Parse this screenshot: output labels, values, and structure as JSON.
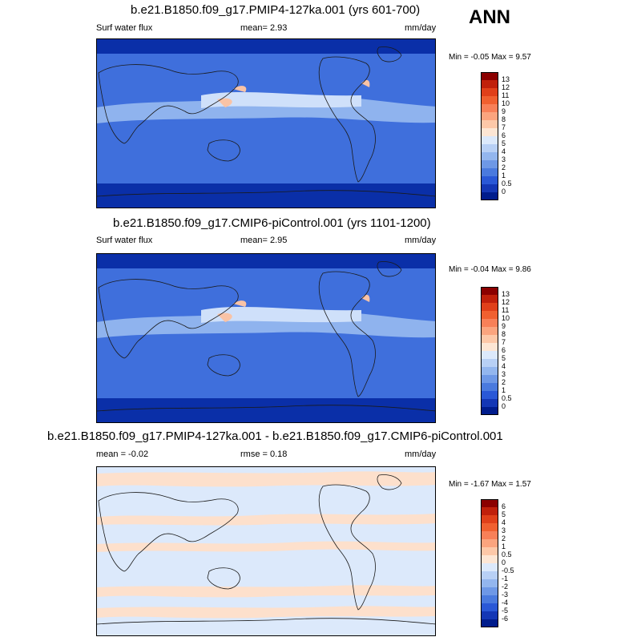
{
  "ann_label": "ANN",
  "units": "mm/day",
  "panels": [
    {
      "title": "b.e21.B1850.f09_g17.PMIP4-127ka.001 (yrs 601-700)",
      "left_label": "Surf water flux",
      "center_label": "mean=   2.93",
      "right_label": "mm/day",
      "minmax": "Min =  -0.05 Max =   9.57",
      "colorbar": {
        "labels": [
          "13",
          "12",
          "11",
          "10",
          "9",
          "8",
          "7",
          "6",
          "5",
          "4",
          "3",
          "2",
          "1",
          "0.5",
          "0"
        ],
        "colors": [
          "#8b0000",
          "#c0200b",
          "#e0401a",
          "#f06030",
          "#f88058",
          "#fba47e",
          "#fdc8a8",
          "#fde6d4",
          "#dce9fb",
          "#b8d0f5",
          "#93b6ee",
          "#6e98e6",
          "#4a7ade",
          "#2a58d6",
          "#1437b5",
          "#001c8c"
        ]
      }
    },
    {
      "title": "b.e21.B1850.f09_g17.CMIP6-piControl.001 (yrs 1101-1200)",
      "left_label": "Surf water flux",
      "center_label": "mean=   2.95",
      "right_label": "mm/day",
      "minmax": "Min =  -0.04 Max =   9.86",
      "colorbar": {
        "labels": [
          "13",
          "12",
          "11",
          "10",
          "9",
          "8",
          "7",
          "6",
          "5",
          "4",
          "3",
          "2",
          "1",
          "0.5",
          "0"
        ],
        "colors": [
          "#8b0000",
          "#c0200b",
          "#e0401a",
          "#f06030",
          "#f88058",
          "#fba47e",
          "#fdc8a8",
          "#fde6d4",
          "#dce9fb",
          "#b8d0f5",
          "#93b6ee",
          "#6e98e6",
          "#4a7ade",
          "#2a58d6",
          "#1437b5",
          "#001c8c"
        ]
      }
    },
    {
      "title": "b.e21.B1850.f09_g17.PMIP4-127ka.001 - b.e21.B1850.f09_g17.CMIP6-piControl.001",
      "left_label": "mean =  -0.02",
      "center_label": "rmse =   0.18",
      "right_label": "mm/day",
      "minmax": "Min =  -1.67 Max =   1.57",
      "colorbar": {
        "labels": [
          "6",
          "5",
          "4",
          "3",
          "2",
          "1",
          "0.5",
          "0",
          "-0.5",
          "-1",
          "-2",
          "-3",
          "-4",
          "-5",
          "-6"
        ],
        "colors": [
          "#8b0000",
          "#c0200b",
          "#e0401a",
          "#f06030",
          "#f88058",
          "#fba47e",
          "#fdc8a8",
          "#fde6d4",
          "#dce9fb",
          "#b8d0f5",
          "#93b6ee",
          "#6e98e6",
          "#4a7ade",
          "#2a58d6",
          "#1437b5",
          "#001c8c"
        ]
      }
    }
  ],
  "map_colors": {
    "deep": "#0a2fa8",
    "mid": "#3f6fdc",
    "light": "#8fb3ee",
    "pale": "#cfe0fa",
    "warm": "#f9c3a6",
    "diff_bg": "#dce9fb",
    "diff_pos": "#fde0cc",
    "coast": "#1a1a1a"
  }
}
